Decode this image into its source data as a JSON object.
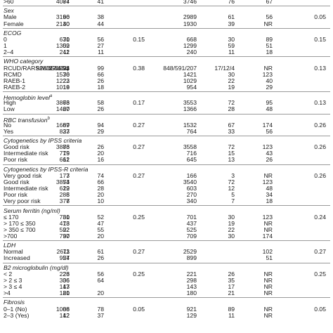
{
  "rows": [
    {
      "kind": "row",
      "label": ">60",
      "v": [
        "4084",
        "77",
        "41",
        "",
        "3746",
        "76",
        "67",
        ""
      ]
    },
    {
      "kind": "sep"
    },
    {
      "kind": "cap",
      "label": "Sex"
    },
    {
      "kind": "row",
      "label": "Male",
      "v": [
        "3196",
        "60",
        "38",
        "",
        "2989",
        "61",
        "56",
        "0.05"
      ]
    },
    {
      "kind": "row",
      "label": "Female",
      "v": [
        "2130",
        "40",
        "44",
        "",
        "1930",
        "39",
        "NR",
        ""
      ]
    },
    {
      "kind": "sep"
    },
    {
      "kind": "cap",
      "label": "ECOG"
    },
    {
      "kind": "row",
      "label": "0",
      "v": [
        "671",
        "30",
        "56",
        "0.15",
        "668",
        "30",
        "89",
        "0.15"
      ]
    },
    {
      "kind": "row",
      "label": "1",
      "v": [
        "1302",
        "59",
        "27",
        "",
        "1299",
        "59",
        "51",
        ""
      ]
    },
    {
      "kind": "row",
      "label": "2–4",
      "v": [
        "242",
        "11",
        "11",
        "",
        "240",
        "11",
        "18",
        ""
      ]
    },
    {
      "kind": "sep"
    },
    {
      "kind": "cap",
      "label": "WHO category"
    },
    {
      "kind": "row",
      "label": "RCUD/RARS/MDSdeSq",
      "v": [
        "928/655/223",
        "17/12/4",
        "99",
        "0.38",
        "848/591/207",
        "17/12/4",
        "NR",
        "0.13"
      ]
    },
    {
      "kind": "row",
      "label": "RCMD",
      "v": [
        "1576",
        "30",
        "66",
        "",
        "1421",
        "30",
        "123",
        ""
      ]
    },
    {
      "kind": "row",
      "label": "RAEB-1",
      "v": [
        "1223",
        "22",
        "26",
        "",
        "1029",
        "22",
        "40",
        ""
      ]
    },
    {
      "kind": "row",
      "label": "RAEB-2",
      "v": [
        "1016",
        "19",
        "18",
        "",
        "954",
        "19",
        "29",
        ""
      ]
    },
    {
      "kind": "sep"
    },
    {
      "kind": "cap",
      "label": "Hemoglobin level",
      "sup": "a"
    },
    {
      "kind": "row",
      "label": "High",
      "v": [
        "3866",
        "73",
        "58",
        "0.17",
        "3553",
        "72",
        "95",
        "0.13"
      ]
    },
    {
      "kind": "row",
      "label": "Low",
      "v": [
        "1460",
        "27",
        "26",
        "",
        "1366",
        "28",
        "48",
        ""
      ]
    },
    {
      "kind": "sep"
    },
    {
      "kind": "cap",
      "label": "RBC transfusion",
      "sup": "b"
    },
    {
      "kind": "row",
      "label": "No",
      "v": [
        "1689",
        "67",
        "94",
        "0.27",
        "1532",
        "67",
        "174",
        "0.26"
      ]
    },
    {
      "kind": "row",
      "label": "Yes",
      "v": [
        "827",
        "33",
        "29",
        "",
        "764",
        "33",
        "56",
        ""
      ]
    },
    {
      "kind": "sep"
    },
    {
      "kind": "cap",
      "label": "Cytogenetics by IPSS criteria"
    },
    {
      "kind": "row",
      "label": "Good risk",
      "v": [
        "3886",
        "73",
        "26",
        "0.27",
        "3558",
        "72",
        "123",
        "0.26"
      ]
    },
    {
      "kind": "row",
      "label": "Intermediate risk",
      "v": [
        "779",
        "15",
        "20",
        "",
        "716",
        "15",
        "43",
        ""
      ]
    },
    {
      "kind": "row",
      "label": "Poor risk",
      "v": [
        "661",
        "12",
        "16",
        "",
        "645",
        "13",
        "26",
        ""
      ]
    },
    {
      "kind": "sep"
    },
    {
      "kind": "cap",
      "label": "Cytogenetics by IPSS-R criteria"
    },
    {
      "kind": "row",
      "label": "Very good risk",
      "v": [
        "177",
        "3",
        "74",
        "0.27",
        "166",
        "3",
        "NR",
        "0.26"
      ]
    },
    {
      "kind": "row",
      "label": "Good risk",
      "v": [
        "3854",
        "73",
        "66",
        "",
        "3540",
        "72",
        "123",
        ""
      ]
    },
    {
      "kind": "row",
      "label": "Intermediate risk",
      "v": [
        "629",
        "12",
        "28",
        "",
        "603",
        "12",
        "48",
        ""
      ]
    },
    {
      "kind": "row",
      "label": "Poor risk",
      "v": [
        "288",
        "5",
        "20",
        "",
        "270",
        "5",
        "34",
        ""
      ]
    },
    {
      "kind": "row",
      "label": "Very poor risk",
      "v": [
        "378",
        "7",
        "10",
        "",
        "340",
        "7",
        "18",
        ""
      ]
    },
    {
      "kind": "sep"
    },
    {
      "kind": "cap",
      "label": "Serum ferritin (ng/ml)"
    },
    {
      "kind": "row",
      "label": "≤ 170",
      "v": [
        "781",
        "30",
        "52",
        "0.25",
        "701",
        "30",
        "123",
        "0.24"
      ]
    },
    {
      "kind": "row",
      "label": "> 170 ≤ 350",
      "v": [
        "473",
        "18",
        "47",
        "",
        "437",
        "19",
        "NR",
        ""
      ]
    },
    {
      "kind": "row",
      "label": "> 350 ≤ 700",
      "v": [
        "592",
        "22",
        "55",
        "",
        "525",
        "22",
        "NR",
        ""
      ]
    },
    {
      "kind": "row",
      "label": ">700",
      "v": [
        "797",
        "30",
        "20",
        "",
        "709",
        "30",
        "174",
        ""
      ]
    },
    {
      "kind": "sep"
    },
    {
      "kind": "cap",
      "label": "LDH"
    },
    {
      "kind": "row",
      "label": "Normal",
      "v": [
        "2611",
        "73",
        "61",
        "0.27",
        "2529",
        "",
        "102",
        "0.27"
      ]
    },
    {
      "kind": "row",
      "label": "Increased",
      "v": [
        "954",
        "27",
        "26",
        "",
        "899",
        "",
        "51",
        ""
      ]
    },
    {
      "kind": "sep"
    },
    {
      "kind": "cap",
      "label": "B2 microglobulin (mg/dl)"
    },
    {
      "kind": "row",
      "label": "< 2",
      "v": [
        "223",
        "26",
        "56",
        "0.25",
        "221",
        "26",
        "NR",
        "0.25"
      ]
    },
    {
      "kind": "row",
      "label": "> 2 ≤ 3",
      "v": [
        "306",
        "36",
        "64",
        "",
        "298",
        "35",
        "NR",
        ""
      ]
    },
    {
      "kind": "row",
      "label": "> 3 ≤ 4",
      "v": [
        "143",
        "17",
        "",
        "",
        "143",
        "17",
        "NR",
        ""
      ]
    },
    {
      "kind": "row",
      "label": ">4",
      "v": [
        "180",
        "21",
        "20",
        "",
        "180",
        "21",
        "NR",
        ""
      ]
    },
    {
      "kind": "sep"
    },
    {
      "kind": "cap",
      "label": "Fibrosis"
    },
    {
      "kind": "row",
      "label": "0–1 (No)",
      "v": [
        "1006",
        "88",
        "78",
        "0.05",
        "921",
        "89",
        "NR",
        "0.05"
      ]
    },
    {
      "kind": "row",
      "label": "2–3 (Yes)",
      "v": [
        "142",
        "12",
        "37",
        "",
        "129",
        "11",
        "NR",
        ""
      ]
    }
  ]
}
